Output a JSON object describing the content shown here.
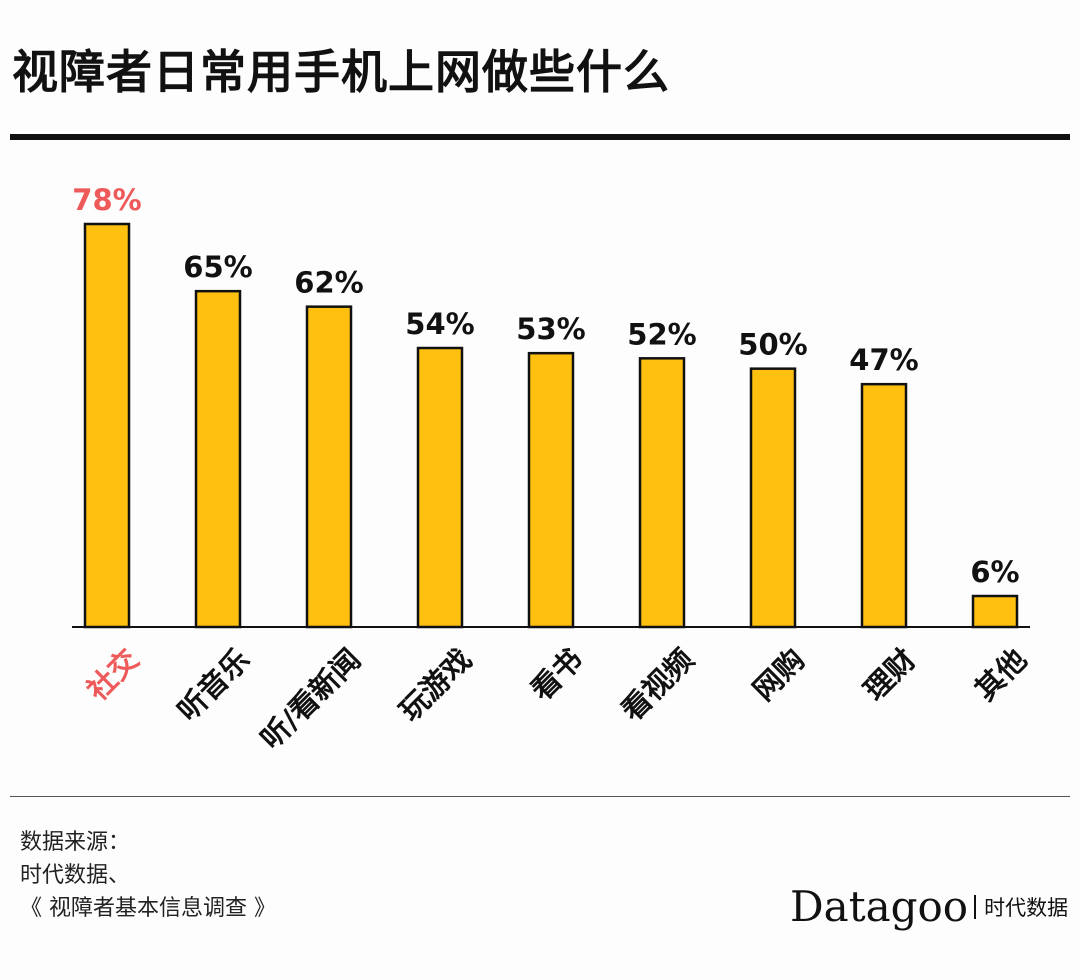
{
  "title": "视障者日常用手机上网做些什么",
  "chart_data": {
    "type": "bar",
    "categories": [
      "社交",
      "听音乐",
      "听/看新闻",
      "玩游戏",
      "看书",
      "看视频",
      "网购",
      "理财",
      "其他"
    ],
    "values": [
      78,
      65,
      62,
      54,
      53,
      52,
      50,
      47,
      6
    ],
    "value_labels": [
      "78%",
      "65%",
      "62%",
      "54%",
      "53%",
      "52%",
      "50%",
      "47%",
      "6%"
    ],
    "unit": "%",
    "highlight_index": 0,
    "ylim": [
      0,
      80
    ],
    "grid": false,
    "legend": "none",
    "colors": {
      "bar": "#FFC010",
      "bar_stroke": "#111111",
      "highlight": "#EE5A5A",
      "text": "#111111"
    }
  },
  "source": {
    "line1": "数据来源：",
    "line2": "时代数据、",
    "line3": "《 视障者基本信息调查 》"
  },
  "brand": {
    "logo": "Datagoo",
    "sub": "时代数据"
  }
}
